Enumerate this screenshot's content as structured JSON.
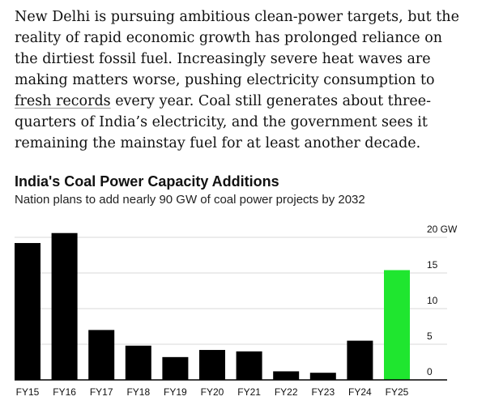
{
  "article": {
    "text_before": "New Delhi is pursuing ambitious clean-power targets, but the reality of rapid economic growth has prolonged reliance on the dirtiest fossil fuel. Increasingly severe heat waves are making matters worse, pushing electricity consumption to ",
    "link_text": "fresh records",
    "text_after": " every year. Coal still generates about three-quarters of India’s electricity, and the government sees it remaining the mainstay fuel for at least another decade."
  },
  "chart_data": {
    "type": "bar",
    "title": "India's Coal Power Capacity Additions",
    "subtitle": "Nation plans to add nearly 90 GW of coal power projects by 2032",
    "categories": [
      "FY15",
      "FY16",
      "FY17",
      "FY18",
      "FY19",
      "FY20",
      "FY21",
      "FY22",
      "FY23",
      "FY24",
      "FY25"
    ],
    "values": [
      19.2,
      20.6,
      7.0,
      4.8,
      3.2,
      4.2,
      4.0,
      1.2,
      1.0,
      5.5,
      15.4
    ],
    "highlight_index": 10,
    "ylim": [
      0,
      20
    ],
    "yticks": [
      0,
      5,
      10,
      15,
      20
    ],
    "ytick_labels": [
      "0",
      "5",
      "10",
      "15",
      "20 GW"
    ],
    "xlabel": "",
    "ylabel": "",
    "colors": {
      "bar": "#000000",
      "highlight": "#1fe62f",
      "grid": "#d9d9d9",
      "axis": "#000000"
    }
  }
}
